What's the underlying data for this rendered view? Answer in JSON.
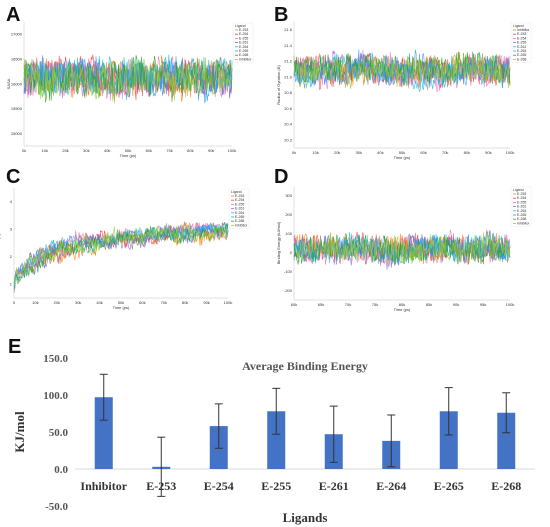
{
  "panels": {
    "A": "A",
    "B": "B",
    "C": "C",
    "D": "D",
    "E": "E"
  },
  "colors": {
    "series": [
      "#ff7f0e",
      "#ff3b3b",
      "#e377c2",
      "#9467bd",
      "#17becf",
      "#1f9fff",
      "#2ca02c",
      "#9acd32"
    ],
    "bar": "#4472c4",
    "axis": "#d9d9d9"
  },
  "chart_data": [
    {
      "type": "line",
      "panel": "A",
      "xlabel": "Time (ps)",
      "ylabel": "SASA",
      "xlim": [
        0,
        100000
      ],
      "ylim": [
        15000,
        17500
      ],
      "x_ticks": [
        "0k",
        "10k",
        "20k",
        "30k",
        "40k",
        "50k",
        "60k",
        "70k",
        "80k",
        "90k",
        "100k"
      ],
      "y_ticks": [
        "15000",
        "15500",
        "16000",
        "16500",
        "17000"
      ],
      "legend_title": "Ligand",
      "legend": [
        "E-253",
        "E-254",
        "E-255",
        "E-261",
        "E-264",
        "E-265",
        "E-268",
        "Inhibitor"
      ],
      "legend_position": "top-right",
      "grid": false
    },
    {
      "type": "line",
      "panel": "B",
      "xlabel": "Time (ps)",
      "ylabel": "Radius of Gyration (Å)",
      "xlim": [
        0,
        100000
      ],
      "ylim": [
        20.2,
        21.7
      ],
      "x_ticks": [
        "0k",
        "10k",
        "20k",
        "30k",
        "40k",
        "50k",
        "60k",
        "70k",
        "80k",
        "90k",
        "100k"
      ],
      "y_ticks": [
        "20.2",
        "20.4",
        "20.6",
        "20.8",
        "21.0",
        "21.2",
        "21.4",
        "21.6"
      ],
      "legend_title": "Ligand",
      "legend": [
        "Inhibitor",
        "E-253",
        "E-254",
        "E-255",
        "E-261",
        "E-264",
        "E-265",
        "E-268"
      ],
      "legend_position": "top-right",
      "grid": false
    },
    {
      "type": "line",
      "panel": "C",
      "xlabel": "Time (ps)",
      "ylabel": "RMSD (Å)",
      "xlim": [
        0,
        100000
      ],
      "ylim": [
        0,
        5
      ],
      "x_ticks": [
        "0",
        "10k",
        "20k",
        "30k",
        "40k",
        "50k",
        "60k",
        "70k",
        "80k",
        "90k",
        "100k"
      ],
      "y_ticks": [
        "1",
        "2",
        "3",
        "4"
      ],
      "legend_title": "Ligand",
      "legend": [
        "E-253",
        "E-254",
        "E-255",
        "E-261",
        "E-264",
        "E-265",
        "E-268",
        "Inhibitor"
      ],
      "legend_position": "top-right",
      "grid": false
    },
    {
      "type": "line",
      "panel": "D",
      "xlabel": "Time (ps)",
      "ylabel": "Binding Energy (kJ/mol)",
      "xlim": [
        60000,
        100000
      ],
      "ylim": [
        -200,
        300
      ],
      "x_ticks": [
        "60k",
        "65k",
        "70k",
        "75k",
        "80k",
        "85k",
        "90k",
        "95k",
        "100k"
      ],
      "y_ticks": [
        "300",
        "200",
        "100",
        "0",
        "-100",
        "-200"
      ],
      "legend_title": "Ligand",
      "legend": [
        "E-253",
        "E-254",
        "E-255",
        "E-261",
        "E-264",
        "E-265",
        "E-268",
        "Inhibitor"
      ],
      "legend_position": "top-right",
      "grid": false
    },
    {
      "type": "bar",
      "panel": "E",
      "title": "Average Binding  Energy",
      "xlabel": "Ligands",
      "ylabel": "KJ/mol",
      "categories": [
        "Inhibitor",
        "E-253",
        "E-254",
        "E-255",
        "E-261",
        "E-264",
        "E-265",
        "E-268"
      ],
      "values": [
        97,
        3,
        58,
        78,
        47,
        38,
        78,
        76
      ],
      "errors": [
        31,
        40,
        30,
        31,
        38,
        35,
        32,
        27
      ],
      "ylim": [
        -50,
        150
      ],
      "y_ticks": [
        "150.0",
        "100.0",
        "50.0",
        "0.0",
        "-50.0"
      ],
      "grid": false
    }
  ]
}
